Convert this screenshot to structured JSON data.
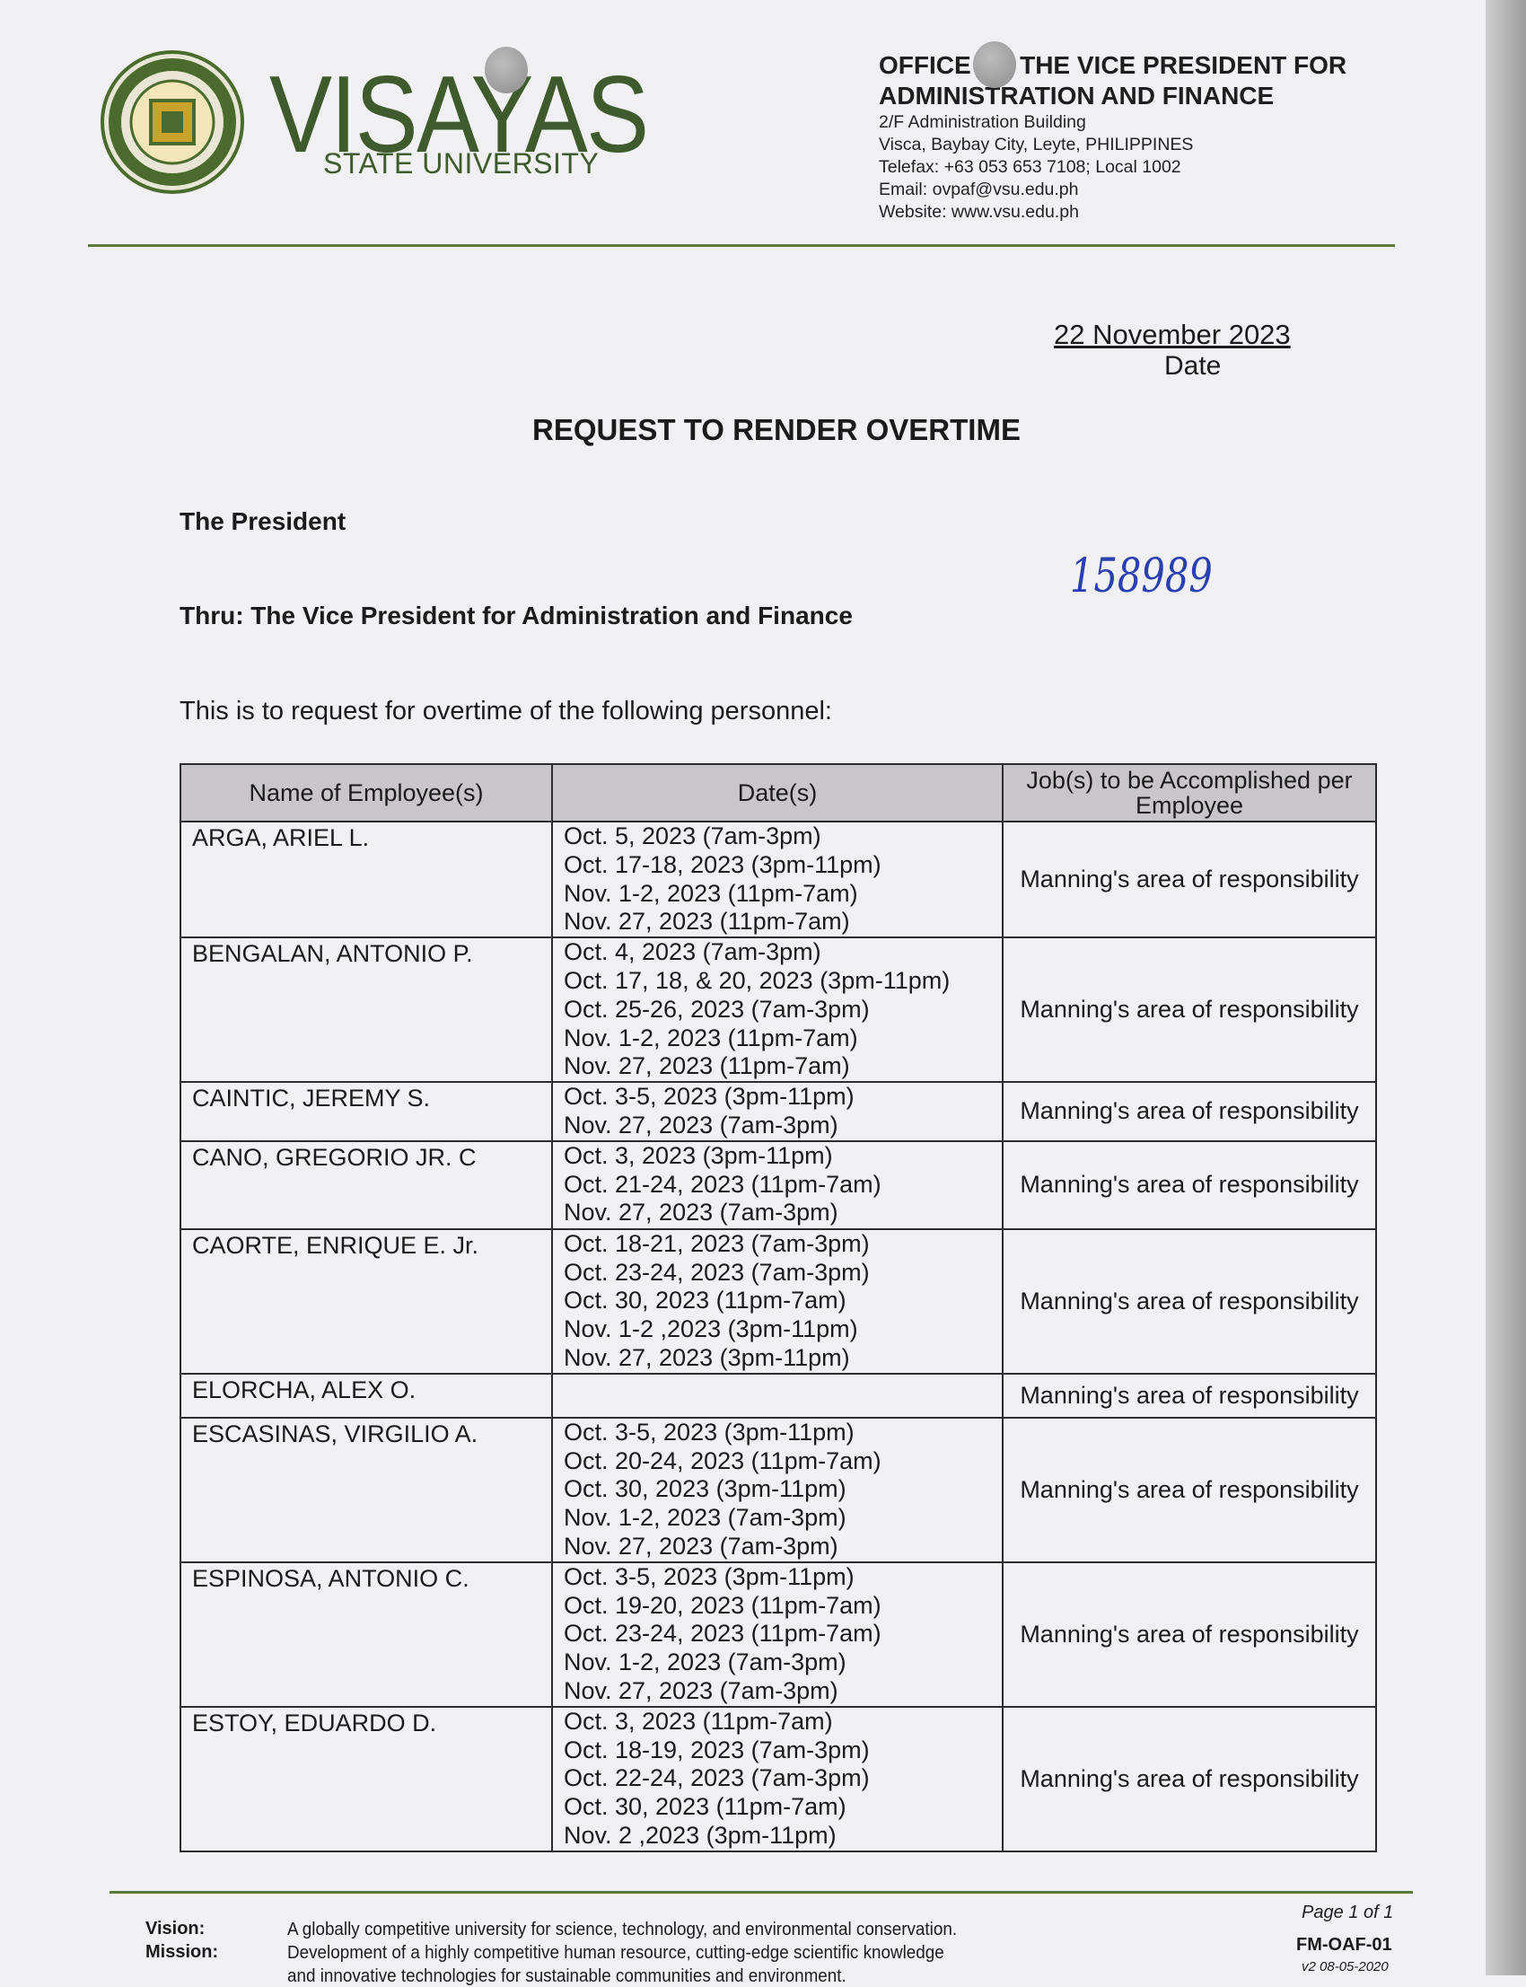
{
  "letterhead": {
    "university_name": "VISAYAS",
    "university_sub": "STATE UNIVERSITY",
    "seal_text": "VISAYAS STATE UNIVERSITY",
    "office_line1": "OFFICE OF THE VICE PRESIDENT FOR",
    "office_line2": "ADMINISTRATION AND FINANCE",
    "address": [
      "2/F Administration Building",
      "Visca, Baybay City, Leyte, PHILIPPINES",
      "Telefax: +63 053 653 7108; Local 1002",
      "Email: ovpaf@vsu.edu.ph",
      "Website: www.vsu.edu.ph"
    ],
    "brand_color": "#3f5a2c"
  },
  "date": {
    "value": "22 November 2023",
    "label": "Date"
  },
  "title": "REQUEST TO RENDER OVERTIME",
  "addressee": "The President",
  "thru": "Thru: The Vice President for Administration and Finance",
  "handwritten_number": "158989",
  "intro": "This is to request for overtime of the following personnel:",
  "table": {
    "headers": [
      "Name of Employee(s)",
      "Date(s)",
      "Job(s) to be Accomplished per Employee"
    ],
    "rows": [
      {
        "name": "ARGA, ARIEL L.",
        "dates": [
          "Oct. 5, 2023 (7am-3pm)",
          "Oct. 17-18, 2023 (3pm-11pm)",
          "Nov. 1-2, 2023 (11pm-7am)",
          "Nov. 27, 2023 (11pm-7am)"
        ],
        "job": "Manning's area of responsibility"
      },
      {
        "name": "BENGALAN, ANTONIO P.",
        "dates": [
          "Oct. 4, 2023 (7am-3pm)",
          "Oct. 17, 18, & 20, 2023 (3pm-11pm)",
          "Oct. 25-26, 2023 (7am-3pm)",
          "Nov. 1-2, 2023 (11pm-7am)",
          "Nov. 27, 2023 (11pm-7am)"
        ],
        "job": "Manning's area of responsibility"
      },
      {
        "name": "CAINTIC, JEREMY S.",
        "dates": [
          "Oct. 3-5, 2023 (3pm-11pm)",
          "Nov. 27, 2023 (7am-3pm)"
        ],
        "job": "Manning's area of responsibility"
      },
      {
        "name": "CANO, GREGORIO JR. C",
        "dates": [
          "Oct. 3, 2023 (3pm-11pm)",
          "Oct. 21-24, 2023 (11pm-7am)",
          "Nov. 27, 2023 (7am-3pm)"
        ],
        "job": "Manning's area of responsibility"
      },
      {
        "name": "CAORTE, ENRIQUE E. Jr.",
        "dates": [
          "Oct. 18-21, 2023 (7am-3pm)",
          "Oct. 23-24, 2023 (7am-3pm)",
          "Oct. 30, 2023 (11pm-7am)",
          "Nov. 1-2 ,2023 (3pm-11pm)",
          "Nov. 27, 2023 (3pm-11pm)"
        ],
        "job": "Manning's area of responsibility"
      },
      {
        "name": "ELORCHA, ALEX O.",
        "dates": [],
        "job": "Manning's area of responsibility"
      },
      {
        "name": "ESCASINAS, VIRGILIO A.",
        "dates": [
          "Oct. 3-5, 2023 (3pm-11pm)",
          "Oct. 20-24, 2023 (11pm-7am)",
          "Oct. 30, 2023 (3pm-11pm)",
          "Nov. 1-2, 2023 (7am-3pm)",
          "Nov. 27, 2023 (7am-3pm)"
        ],
        "job": "Manning's area of responsibility"
      },
      {
        "name": "ESPINOSA, ANTONIO C.",
        "dates": [
          "Oct. 3-5, 2023 (3pm-11pm)",
          "Oct. 19-20, 2023 (11pm-7am)",
          "Oct. 23-24, 2023 (11pm-7am)",
          "Nov. 1-2, 2023 (7am-3pm)",
          "Nov. 27, 2023 (7am-3pm)"
        ],
        "job": "Manning's area of responsibility"
      },
      {
        "name": "ESTOY, EDUARDO D.",
        "dates": [
          "Oct. 3, 2023 (11pm-7am)",
          "Oct. 18-19, 2023 (7am-3pm)",
          "Oct. 22-24, 2023 (7am-3pm)",
          "Oct. 30, 2023 (11pm-7am)",
          "Nov. 2 ,2023 (3pm-11pm)"
        ],
        "job": "Manning's area of responsibility"
      }
    ]
  },
  "footer": {
    "vision_label": "Vision:",
    "vision_text": "A globally competitive university for science, technology, and environmental conservation.",
    "mission_label": "Mission:",
    "mission_text": "Development of a highly competitive human resource, cutting-edge scientific knowledge",
    "mission_text_2": "and innovative technologies for sustainable communities and environment.",
    "page": "Page 1 of 1",
    "form_code": "FM-OAF-01",
    "version": "v2 08-05-2020"
  }
}
